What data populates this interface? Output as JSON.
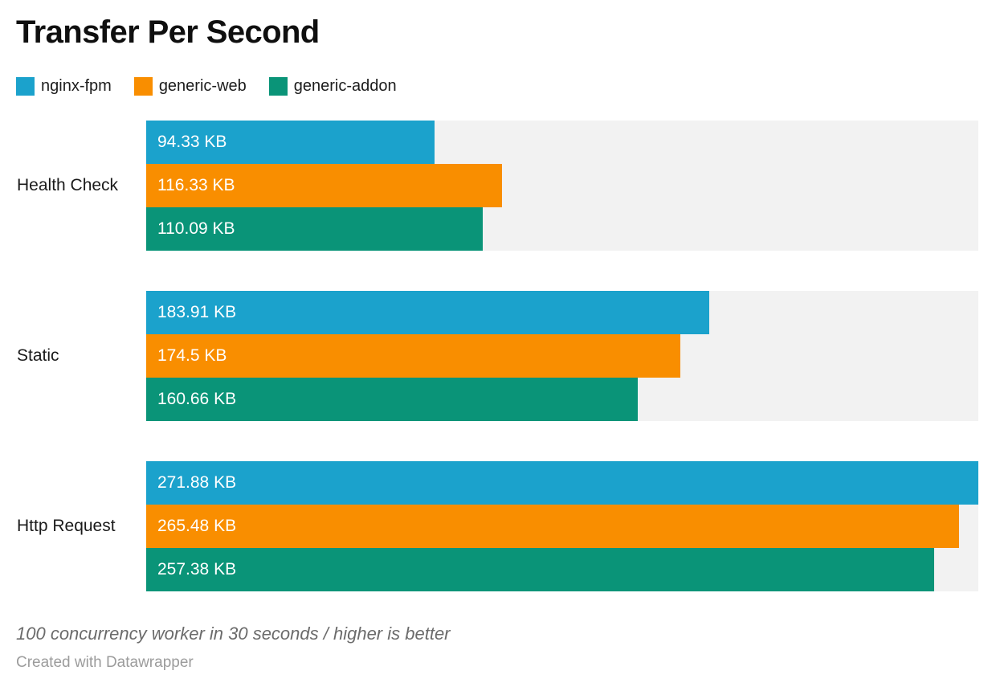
{
  "chart_data": {
    "type": "bar",
    "orientation": "horizontal",
    "title": "Transfer Per Second",
    "unit": "KB",
    "categories": [
      "Health Check",
      "Static",
      "Http Request"
    ],
    "series": [
      {
        "name": "nginx-fpm",
        "color": "#1ba2cc",
        "values": [
          94.33,
          183.91,
          271.88
        ],
        "labels": [
          "94.33 KB",
          "183.91 KB",
          "271.88 KB"
        ]
      },
      {
        "name": "generic-web",
        "color": "#f98e00",
        "values": [
          116.33,
          174.5,
          265.48
        ],
        "labels": [
          "116.33 KB",
          "174.5 KB",
          "265.48 KB"
        ]
      },
      {
        "name": "generic-addon",
        "color": "#0a9478",
        "values": [
          110.09,
          160.66,
          257.38
        ],
        "labels": [
          "110.09 KB",
          "160.66 KB",
          "257.38 KB"
        ]
      }
    ],
    "xlim": [
      0,
      271.88
    ],
    "track_color": "#f2f2f2",
    "grid": false,
    "legend_position": "top-left",
    "value_labels_inside_bars": true,
    "note": "100 concurrency worker in 30 seconds / higher is better",
    "attribution": "Created with Datawrapper"
  }
}
